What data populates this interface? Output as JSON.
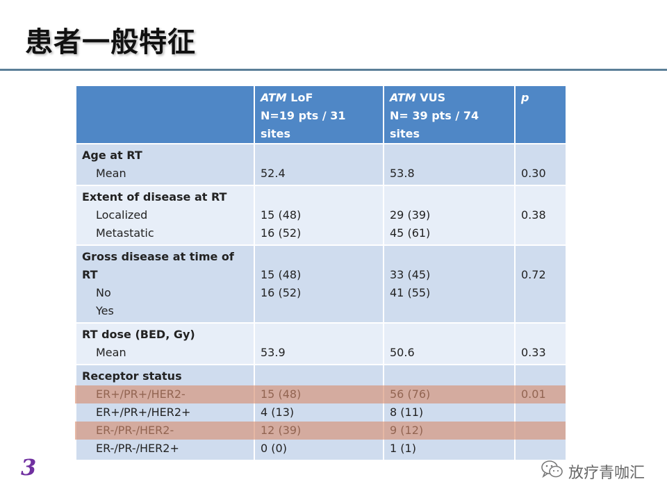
{
  "slide": {
    "title": "患者一般特征",
    "page_number": "3",
    "watermark": "放疗青咖汇",
    "accent_color": "#4f87c6",
    "highlight_color": "#d68c6e"
  },
  "table": {
    "header": {
      "col1": {
        "gene": "ATM",
        "group": " LoF",
        "count": "N=19 pts / 31 sites"
      },
      "col2": {
        "gene": "ATM",
        "group": " VUS",
        "count": "N= 39 pts / 74 sites"
      },
      "col3": {
        "label": "p"
      }
    },
    "rows": {
      "age": {
        "label": "Age at RT",
        "sub": [
          "Mean"
        ],
        "lof": [
          "52.4"
        ],
        "vus": [
          "53.8"
        ],
        "p": "0.30"
      },
      "extent": {
        "label": "Extent of disease at RT",
        "sub": [
          "Localized",
          "Metastatic"
        ],
        "lof": [
          "15 (48)",
          "16 (52)"
        ],
        "vus": [
          "29 (39)",
          "45 (61)"
        ],
        "p": "0.38"
      },
      "gross": {
        "label": "Gross disease at time of RT",
        "sub": [
          "No",
          "Yes"
        ],
        "lof": [
          "15 (48)",
          "16 (52)"
        ],
        "vus": [
          "33 (45)",
          "41 (55)"
        ],
        "p": "0.72"
      },
      "dose": {
        "label": "RT dose (BED, Gy)",
        "sub": [
          "Mean"
        ],
        "lof": [
          "53.9"
        ],
        "vus": [
          "50.6"
        ],
        "p": "0.33"
      },
      "receptor": {
        "label": "Receptor status",
        "sub": [
          "ER+/PR+/HER2-",
          "ER+/PR+/HER2+",
          "ER-/PR-/HER2-",
          "ER-/PR-/HER2+"
        ],
        "lof": [
          "15 (48)",
          "4 (13)",
          "12 (39)",
          "0 (0)"
        ],
        "vus": [
          "56 (76)",
          "8 (11)",
          "9 (12)",
          "1 (1)"
        ],
        "p": "0.01"
      }
    }
  }
}
